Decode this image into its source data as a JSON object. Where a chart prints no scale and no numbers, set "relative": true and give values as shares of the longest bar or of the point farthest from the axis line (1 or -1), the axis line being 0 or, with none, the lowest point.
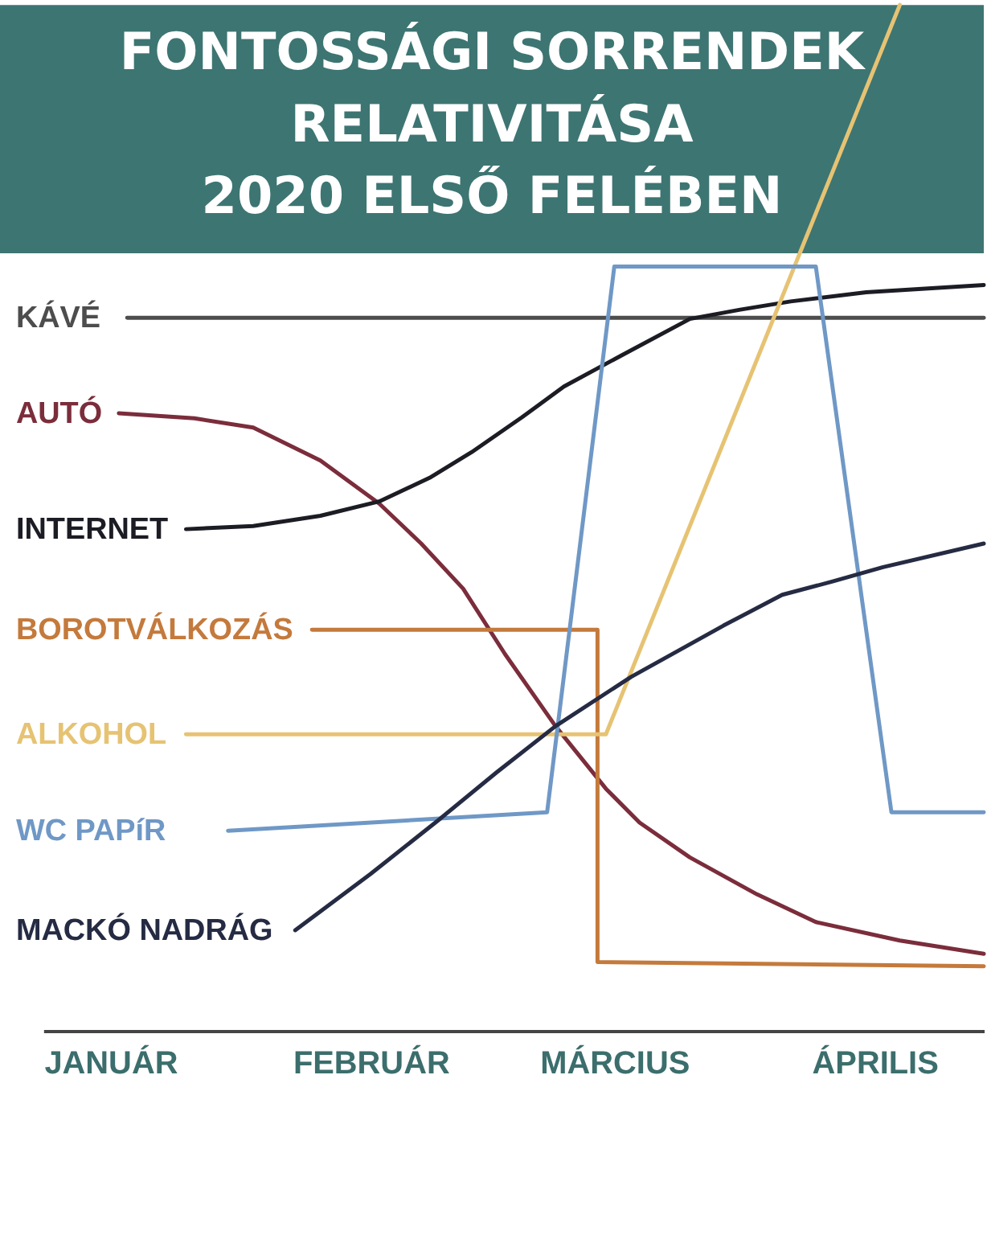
{
  "chart_data": {
    "type": "line",
    "title": "FONTOSSÁGI SORRENDEK\nRELATIVITÁSA\n2020 ELSŐ FELÉBEN",
    "relative": true,
    "grid": false,
    "legend": false,
    "xlim": [
      "2019-12-24",
      "2020-04-14"
    ],
    "xticks": [
      {
        "value": "2020-01",
        "label": "JANUÁR"
      },
      {
        "value": "2020-02",
        "label": "FEBRUÁR"
      },
      {
        "value": "2020-03",
        "label": "MÁRCIUS"
      },
      {
        "value": "2020-04",
        "label": "ÁPRILIS"
      }
    ],
    "bands": [
      {
        "axis": "y",
        "from": 0.758,
        "to": 1,
        "color": "#3d7572"
      }
    ],
    "series": [
      {
        "name": "KÁVÉ",
        "color": "#4d4d4d",
        "x": [
          "2020-01-03",
          "2020-04-14"
        ],
        "values": [
          0.695,
          0.695
        ]
      },
      {
        "name": "AUTÓ",
        "color": "#7b2d3b",
        "x": [
          "2020-01-02",
          "2020-01-11",
          "2020-01-18",
          "2020-01-26",
          "2020-02-02",
          "2020-02-07",
          "2020-02-12",
          "2020-02-17",
          "2020-02-23",
          "2020-02-29",
          "2020-03-04",
          "2020-03-10",
          "2020-03-18",
          "2020-03-25",
          "2020-04-04",
          "2020-04-14"
        ],
        "values": [
          0.602,
          0.597,
          0.588,
          0.556,
          0.514,
          0.475,
          0.431,
          0.367,
          0.297,
          0.236,
          0.203,
          0.169,
          0.133,
          0.106,
          0.088,
          0.075
        ]
      },
      {
        "name": "INTERNET",
        "color": "#1c1c24",
        "x": [
          "2020-01-10",
          "2020-01-18",
          "2020-01-26",
          "2020-02-02",
          "2020-02-08",
          "2020-02-13",
          "2020-02-19",
          "2020-02-24",
          "2020-03-02",
          "2020-03-10",
          "2020-03-16",
          "2020-03-22",
          "2020-03-31",
          "2020-04-14"
        ],
        "values": [
          0.489,
          0.492,
          0.502,
          0.516,
          0.539,
          0.564,
          0.598,
          0.628,
          0.659,
          0.694,
          0.703,
          0.711,
          0.72,
          0.727
        ]
      },
      {
        "name": "BOROTVÁLKOZÁS",
        "color": "#c47a3c",
        "x": [
          "2020-01-25",
          "2020-02-28",
          "2020-02-28",
          "2020-04-14"
        ],
        "values": [
          0.391,
          0.391,
          0.067,
          0.063
        ]
      },
      {
        "name": "ALKOHOL",
        "color": "#e6c373",
        "x": [
          "2020-01-10",
          "2020-02-29",
          "2020-04-04"
        ],
        "values": [
          0.289,
          0.289,
          1
        ]
      },
      {
        "name": "WC PAPíR",
        "color": "#6f98c6",
        "x": [
          "2020-01-15",
          "2020-02-22",
          "2020-03-01",
          "2020-03-25",
          "2020-04-03",
          "2020-04-14"
        ],
        "values": [
          0.195,
          0.213,
          0.745,
          0.745,
          0.213,
          0.213
        ]
      },
      {
        "name": "MACKÓ NADRÁG",
        "color": "#262b44",
        "x": [
          "2020-01-23",
          "2020-02-01",
          "2020-02-09",
          "2020-02-16",
          "2020-02-23",
          "2020-03-03",
          "2020-03-14",
          "2020-03-21",
          "2020-03-27",
          "2020-04-02",
          "2020-04-14"
        ],
        "values": [
          0.098,
          0.153,
          0.205,
          0.252,
          0.297,
          0.345,
          0.395,
          0.425,
          0.438,
          0.452,
          0.475
        ]
      }
    ]
  }
}
